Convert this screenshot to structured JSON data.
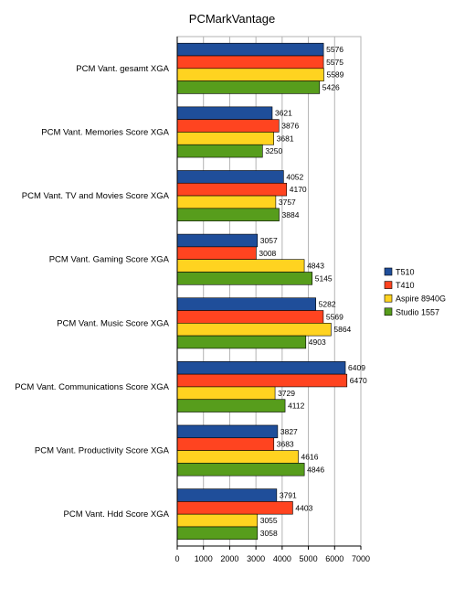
{
  "chart_data": {
    "type": "bar",
    "orientation": "horizontal",
    "title": "PCMarkVantage",
    "categories": [
      "PCM Vant. gesamt XGA",
      "PCM Vant. Memories Score XGA",
      "PCM Vant. TV and Movies Score XGA",
      "PCM Vant. Gaming Score XGA",
      "PCM Vant. Music Score XGA",
      "PCM Vant. Communications Score XGA",
      "PCM Vant. Productivity Score XGA",
      "PCM Vant. Hdd Score XGA"
    ],
    "series": [
      {
        "name": "T510",
        "color": "#1f4e9a",
        "values": [
          5576,
          3621,
          4052,
          3057,
          5282,
          6409,
          3827,
          3791
        ]
      },
      {
        "name": "T410",
        "color": "#ff4420",
        "values": [
          5575,
          3876,
          4170,
          3008,
          5569,
          6470,
          3683,
          4403
        ]
      },
      {
        "name": "Aspire 8940G",
        "color": "#ffd320",
        "values": [
          5589,
          3681,
          3757,
          4843,
          5864,
          3729,
          4616,
          3055
        ]
      },
      {
        "name": "Studio 1557",
        "color": "#579d1c",
        "values": [
          5426,
          3250,
          3884,
          5145,
          4903,
          4112,
          4846,
          3058
        ]
      }
    ],
    "xlim": [
      0,
      7000
    ],
    "xticks": [
      0,
      1000,
      2000,
      3000,
      4000,
      5000,
      6000,
      7000
    ],
    "grid": true,
    "legend_position": "right"
  }
}
